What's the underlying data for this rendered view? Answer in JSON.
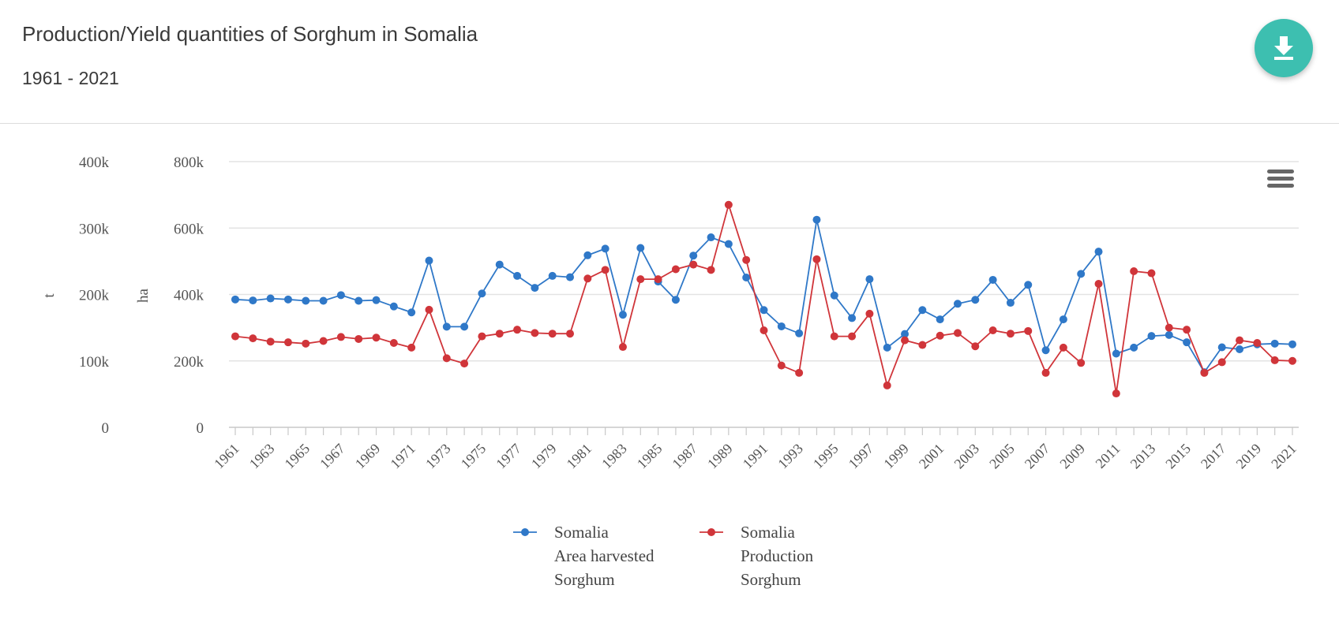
{
  "header": {
    "title": "Production/Yield quantities of Sorghum in Somalia",
    "subtitle": "1961 - 2021"
  },
  "icons": {
    "download": "download-icon",
    "menu": "hamburger-menu-icon"
  },
  "chart_data": {
    "type": "line",
    "x": [
      1961,
      1962,
      1963,
      1964,
      1965,
      1966,
      1967,
      1968,
      1969,
      1970,
      1971,
      1972,
      1973,
      1974,
      1975,
      1976,
      1977,
      1978,
      1979,
      1980,
      1981,
      1982,
      1983,
      1984,
      1985,
      1986,
      1987,
      1988,
      1989,
      1990,
      1991,
      1992,
      1993,
      1994,
      1995,
      1996,
      1997,
      1998,
      1999,
      2000,
      2001,
      2002,
      2003,
      2004,
      2005,
      2006,
      2007,
      2008,
      2009,
      2010,
      2011,
      2012,
      2013,
      2014,
      2015,
      2016,
      2017,
      2018,
      2019,
      2020,
      2021
    ],
    "x_tick_labels": [
      "1961",
      "1963",
      "1965",
      "1967",
      "1969",
      "1971",
      "1973",
      "1975",
      "1977",
      "1979",
      "1981",
      "1983",
      "1985",
      "1987",
      "1989",
      "1991",
      "1993",
      "1995",
      "1997",
      "1999",
      "2001",
      "2003",
      "2005",
      "2007",
      "2009",
      "2011",
      "2013",
      "2015",
      "2017",
      "2019",
      "2021"
    ],
    "axes": {
      "left_outer": {
        "label": "t",
        "min": 0,
        "max": 400000,
        "ticks": [
          "0",
          "100k",
          "200k",
          "300k",
          "400k"
        ]
      },
      "left_inner": {
        "label": "ha",
        "min": 0,
        "max": 800000,
        "ticks": [
          "0",
          "200k",
          "400k",
          "600k",
          "800k"
        ]
      }
    },
    "grid": true,
    "legend_position": "bottom",
    "series": [
      {
        "name": "Somalia Area harvested Sorghum",
        "legend_lines": [
          "Somalia",
          "Area harvested",
          "Sorghum"
        ],
        "axis": "left_inner",
        "color": "#2f78c8",
        "values": [
          385000,
          382000,
          388000,
          385000,
          381000,
          381000,
          398000,
          381000,
          383000,
          364000,
          346000,
          502000,
          303000,
          303000,
          403000,
          490000,
          456000,
          420000,
          456000,
          452000,
          518000,
          538000,
          339000,
          540000,
          439000,
          384000,
          517000,
          572000,
          552000,
          451000,
          353000,
          304000,
          283000,
          625000,
          397000,
          329000,
          446000,
          240000,
          281000,
          353000,
          325000,
          372000,
          384000,
          444000,
          375000,
          429000,
          232000,
          325000,
          462000,
          529000,
          222000,
          240000,
          275000,
          278000,
          256000,
          166000,
          241000,
          235000,
          250000,
          252000,
          250000
        ]
      },
      {
        "name": "Somalia Production Sorghum",
        "legend_lines": [
          "Somalia",
          "Production",
          "Sorghum"
        ],
        "axis": "left_outer",
        "color": "#d0353a",
        "values": [
          137000,
          134000,
          129000,
          128000,
          126000,
          130000,
          136000,
          133000,
          135000,
          127000,
          120000,
          177000,
          104000,
          96000,
          137000,
          141000,
          147000,
          142000,
          141000,
          141000,
          224000,
          237000,
          121000,
          223000,
          223000,
          238000,
          245000,
          237000,
          335000,
          252000,
          146000,
          93000,
          82000,
          253000,
          137000,
          137000,
          171000,
          63000,
          131000,
          124000,
          138000,
          142000,
          122000,
          146000,
          141000,
          145000,
          82000,
          120000,
          97000,
          216000,
          51000,
          235000,
          232000,
          150000,
          147000,
          82000,
          98000,
          131000,
          127000,
          101000,
          100000
        ]
      }
    ]
  }
}
